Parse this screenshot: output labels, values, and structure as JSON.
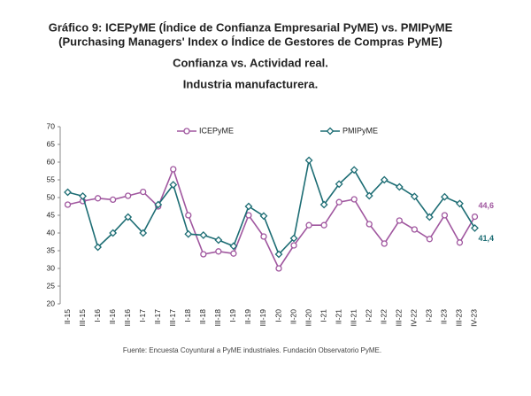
{
  "chart_data": {
    "type": "line",
    "title": [
      "Gráfico 9: ICEPyME (Índice de Confianza Empresarial PyME) vs. PMIPyME",
      "(Purchasing Managers' Index o Índice de Gestores de Compras PyME)"
    ],
    "subtitle": [
      "Confianza vs. Actividad real.",
      "Industria manufacturera."
    ],
    "source": "Fuente: Encuesta Coyuntural a PyME industriales. Fundación Observatorio PyME.",
    "categories": [
      "II-15",
      "III-15",
      "I-16",
      "II-16",
      "III-16",
      "I-17",
      "II-17",
      "III-17",
      "I-18",
      "II-18",
      "III-18",
      "I-19",
      "II-19",
      "III-19",
      "I-20",
      "II-20",
      "III-20",
      "I-21",
      "II-21",
      "III-21",
      "I-22",
      "II-22",
      "III-22",
      "IV-22",
      "I-23",
      "II-23",
      "III-23",
      "IV-23"
    ],
    "series": [
      {
        "name": "ICEPyME",
        "color": "#a0579f",
        "marker": "circle",
        "values": [
          48.0,
          49.0,
          49.8,
          49.4,
          50.5,
          51.6,
          47.5,
          58.0,
          45.0,
          34.0,
          34.8,
          34.2,
          45.0,
          39.0,
          30.0,
          36.5,
          42.2,
          42.2,
          48.7,
          49.5,
          42.5,
          37.0,
          43.5,
          41.0,
          38.3,
          45.0,
          37.3,
          44.6
        ],
        "value_labels": [
          null,
          null,
          null,
          null,
          null,
          null,
          null,
          null,
          null,
          null,
          null,
          null,
          null,
          null,
          null,
          null,
          null,
          null,
          null,
          null,
          null,
          null,
          null,
          null,
          null,
          null,
          null,
          "44,6"
        ]
      },
      {
        "name": "PMIPyME",
        "color": "#1d6d74",
        "marker": "diamond",
        "values": [
          51.5,
          50.4,
          36.0,
          40.0,
          44.5,
          40.0,
          48.0,
          53.6,
          39.7,
          39.4,
          38.0,
          36.3,
          47.5,
          44.8,
          34.0,
          38.5,
          60.5,
          48.0,
          53.8,
          57.8,
          50.5,
          55.0,
          53.0,
          50.3,
          44.5,
          50.2,
          48.3,
          41.4
        ],
        "value_labels": [
          null,
          null,
          null,
          null,
          null,
          null,
          null,
          null,
          null,
          null,
          null,
          null,
          null,
          null,
          null,
          null,
          null,
          null,
          null,
          null,
          null,
          null,
          null,
          null,
          null,
          null,
          null,
          "41,4"
        ]
      }
    ],
    "ylim": [
      20,
      70
    ],
    "yticks": [
      20,
      25,
      30,
      35,
      40,
      45,
      50,
      55,
      60,
      65,
      70
    ],
    "grid": false,
    "legend": "top"
  }
}
